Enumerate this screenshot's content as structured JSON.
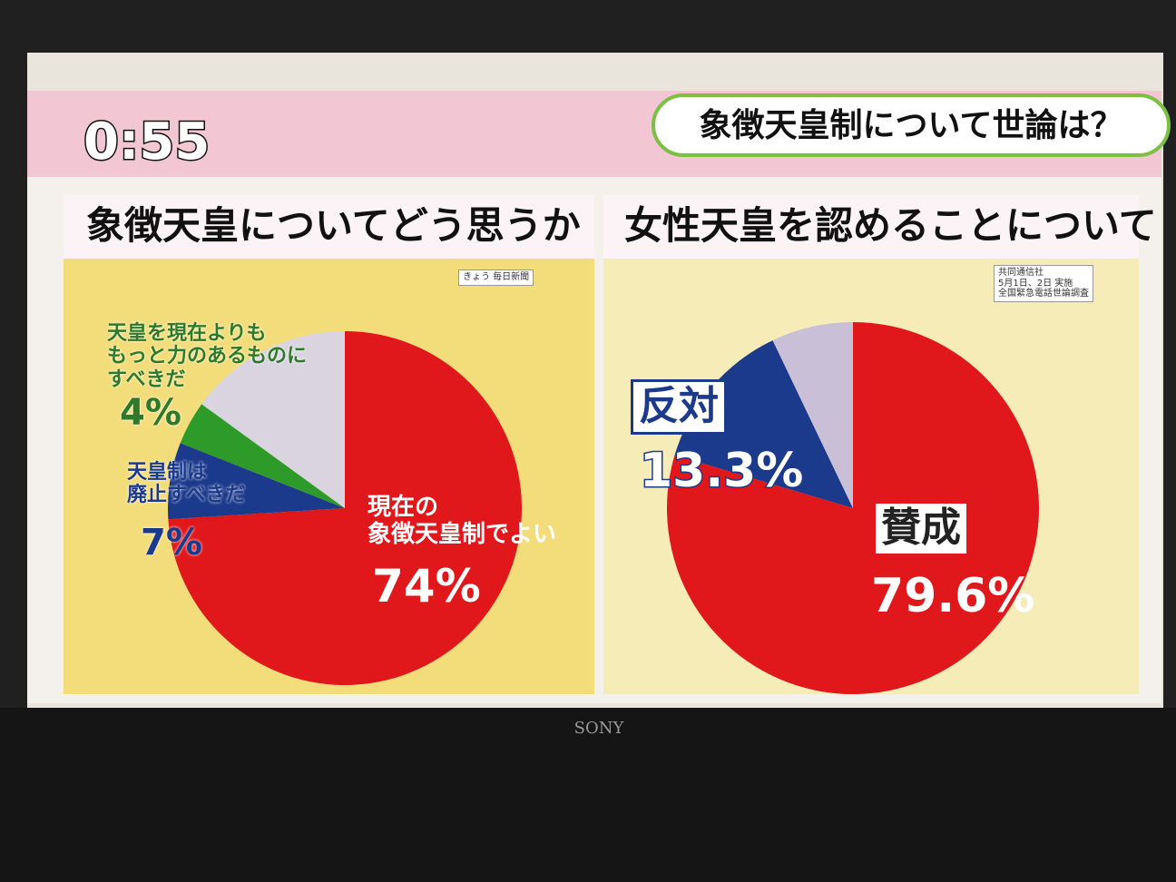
{
  "screen": {
    "clock": "0:55",
    "headline": "象徴天皇制について世論は？",
    "brand": "SONY"
  },
  "chart_data": [
    {
      "type": "pie",
      "title": "象徴天皇についてどう思うか",
      "source": "きょう 毎日新聞",
      "categories": [
        "現在の\n象徴天皇制でよい",
        "天皇制は\n廃止すべきだ",
        "天皇を現在よりも\nもっと力のあるものに\nすべきだ",
        null
      ],
      "values": [
        74,
        7,
        4,
        15
      ],
      "value_labels": [
        "74%",
        "7%",
        "4%",
        null
      ],
      "colors": [
        "#e0181c",
        "#1c3a8c",
        "#2e9a2a",
        "#d9d4e0"
      ]
    },
    {
      "type": "pie",
      "title": "女性天皇を認めることについて",
      "source": "共同通信社\n5月1日、2日 実施\n全国緊急電話世論調査",
      "categories": [
        "賛成",
        "反対",
        null
      ],
      "values": [
        79.6,
        13.3,
        7.1
      ],
      "value_labels": [
        "79.6%",
        "13.3%",
        null
      ],
      "colors": [
        "#e0181c",
        "#1c3a8c",
        "#c9bfd6"
      ]
    }
  ]
}
